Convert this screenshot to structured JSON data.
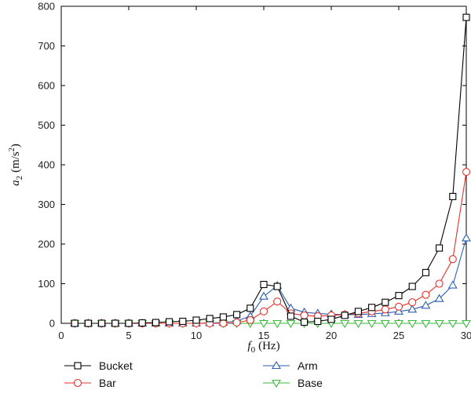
{
  "chart_data": {
    "type": "line",
    "title": "",
    "xlabel": {
      "symbol": "f",
      "sub": "0",
      "unit": "(Hz)"
    },
    "ylabel": {
      "symbol": "a",
      "sub": "2",
      "unit_pre": "(m/s",
      "unit_sup": "2",
      "unit_post": ")"
    },
    "xlim": [
      0,
      30
    ],
    "ylim": [
      0,
      800
    ],
    "xticks": [
      0,
      5,
      10,
      15,
      20,
      25,
      30
    ],
    "yticks": [
      0,
      100,
      200,
      300,
      400,
      500,
      600,
      700,
      800
    ],
    "grid": false,
    "legend_position": "bottom",
    "x": [
      1,
      2,
      3,
      4,
      5,
      6,
      7,
      8,
      9,
      10,
      11,
      12,
      13,
      14,
      15,
      16,
      17,
      18,
      19,
      20,
      21,
      22,
      23,
      24,
      25,
      26,
      27,
      28,
      29,
      30
    ],
    "series": [
      {
        "name": "Bucket",
        "color": "#000000",
        "marker": "square",
        "values": [
          0,
          0,
          0,
          0,
          0,
          1,
          2,
          4,
          5,
          8,
          12,
          16,
          22,
          38,
          98,
          93,
          18,
          3,
          5,
          10,
          20,
          30,
          40,
          53,
          70,
          93,
          128,
          190,
          320,
          772
        ]
      },
      {
        "name": "Bar",
        "color": "#e8312a",
        "marker": "circle",
        "values": [
          0,
          0,
          0,
          0,
          0,
          0,
          0,
          0,
          0,
          0,
          0,
          0,
          2,
          8,
          30,
          55,
          25,
          20,
          18,
          20,
          22,
          25,
          30,
          35,
          42,
          53,
          72,
          100,
          162,
          382
        ]
      },
      {
        "name": "Arm",
        "color": "#2e5fb0",
        "marker": "triangle-up",
        "values": [
          0,
          0,
          0,
          0,
          0,
          0,
          0,
          0,
          0,
          0,
          1,
          2,
          6,
          18,
          68,
          95,
          38,
          28,
          25,
          23,
          22,
          22,
          24,
          26,
          30,
          35,
          45,
          62,
          96,
          215
        ]
      },
      {
        "name": "Base",
        "color": "#3cba3c",
        "marker": "triangle-down",
        "values": [
          0,
          0,
          0,
          0,
          0,
          0,
          0,
          0,
          0,
          0,
          0,
          0,
          0,
          0,
          0,
          0,
          0,
          0,
          0,
          0,
          0,
          0,
          0,
          0,
          0,
          0,
          0,
          0,
          0,
          0
        ]
      }
    ]
  }
}
